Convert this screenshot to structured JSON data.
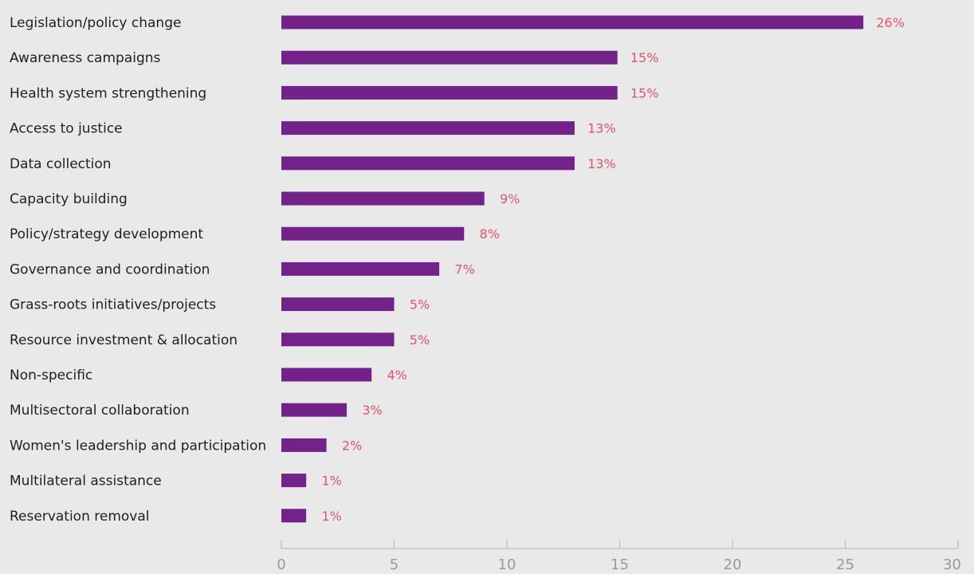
{
  "chart_data": {
    "type": "bar",
    "orientation": "horizontal",
    "categories": [
      "Legislation/policy change",
      "Awareness campaigns",
      "Health system strengthening",
      "Access to justice",
      "Data collection",
      "Capacity building",
      "Policy/strategy development",
      "Governance and coordination",
      "Grass-roots initiatives/projects",
      "Resource investment & allocation",
      "Non-specific",
      "Multisectoral collaboration",
      "Women's leadership and participation",
      "Multilateral assistance",
      "Reservation removal"
    ],
    "values": [
      25.8,
      14.9,
      14.9,
      13.0,
      13.0,
      9.0,
      8.1,
      7.0,
      5.0,
      5.0,
      4.0,
      2.9,
      2.0,
      1.1,
      1.1
    ],
    "value_labels": [
      "26%",
      "15%",
      "15%",
      "13%",
      "13%",
      "9%",
      "8%",
      "7%",
      "5%",
      "5%",
      "4%",
      "3%",
      "2%",
      "1%",
      "1%"
    ],
    "xlim": [
      0,
      30
    ],
    "xticks": [
      0,
      5,
      10,
      15,
      20,
      25,
      30
    ],
    "grid": false,
    "legend": "none",
    "colors": {
      "bar": "#732289",
      "value_label": "#e2566b",
      "background": "#e9e9e9",
      "axis": "#b4b4b4"
    }
  }
}
